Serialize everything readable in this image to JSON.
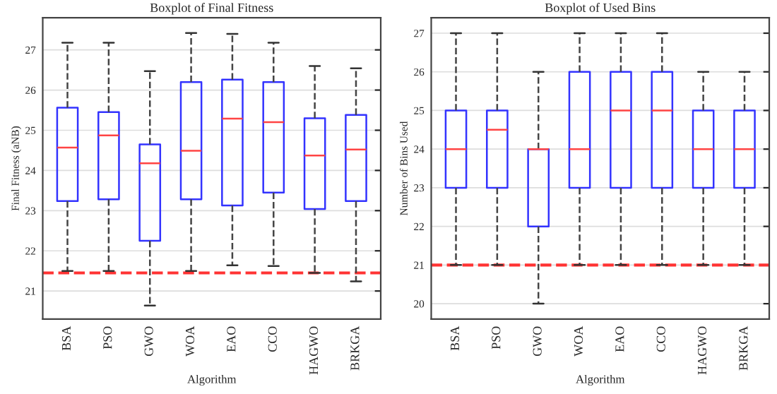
{
  "chart_data": [
    {
      "type": "box",
      "title": "Boxplot of Final Fitness",
      "xlabel": "Algorithm",
      "ylabel": "Final Fitness (aNB)",
      "categories": [
        "BSA",
        "PSO",
        "GWO",
        "WOA",
        "EAO",
        "CCO",
        "HAGWO",
        "BRKGA"
      ],
      "series": [
        {
          "color": "#3333ff",
          "boxes": [
            {
              "low": 21.5,
              "q1": 23.24,
              "median": 24.57,
              "q3": 25.56,
              "high": 27.18
            },
            {
              "low": 21.5,
              "q1": 23.28,
              "median": 24.87,
              "q3": 25.45,
              "high": 27.18
            },
            {
              "low": 20.64,
              "q1": 22.25,
              "median": 24.18,
              "q3": 24.65,
              "high": 26.47
            },
            {
              "low": 21.5,
              "q1": 23.28,
              "median": 24.49,
              "q3": 26.2,
              "high": 27.42
            },
            {
              "low": 21.64,
              "q1": 23.13,
              "median": 25.29,
              "q3": 26.26,
              "high": 27.4
            },
            {
              "low": 21.62,
              "q1": 23.45,
              "median": 25.2,
              "q3": 26.2,
              "high": 27.18
            },
            {
              "low": 21.45,
              "q1": 23.04,
              "median": 24.37,
              "q3": 25.3,
              "high": 26.6
            },
            {
              "low": 21.24,
              "q1": 23.24,
              "median": 24.52,
              "q3": 25.38,
              "high": 26.54
            }
          ]
        }
      ],
      "ylim": [
        20.3,
        27.8
      ],
      "yticks": [
        21,
        22,
        23,
        24,
        25,
        26,
        27
      ],
      "grid": "y",
      "ref_lines": [
        {
          "axis": "y",
          "value": 21.45,
          "color": "#ff3333",
          "line_style": "dashed"
        }
      ]
    },
    {
      "type": "box",
      "title": "Boxplot of Used Bins",
      "xlabel": "Algorithm",
      "ylabel": "Number of Bins Used",
      "categories": [
        "BSA",
        "PSO",
        "GWO",
        "WOA",
        "EAO",
        "CCO",
        "HAGWO",
        "BRKGA"
      ],
      "series": [
        {
          "color": "#3333ff",
          "boxes": [
            {
              "low": 21,
              "q1": 23,
              "median": 24,
              "q3": 25,
              "high": 27
            },
            {
              "low": 21,
              "q1": 23,
              "median": 24.5,
              "q3": 25,
              "high": 27
            },
            {
              "low": 20,
              "q1": 22,
              "median": 24,
              "q3": 24,
              "high": 26
            },
            {
              "low": 21,
              "q1": 23,
              "median": 24,
              "q3": 26,
              "high": 27
            },
            {
              "low": 21,
              "q1": 23,
              "median": 25,
              "q3": 26,
              "high": 27
            },
            {
              "low": 21,
              "q1": 23,
              "median": 25,
              "q3": 26,
              "high": 27
            },
            {
              "low": 21,
              "q1": 23,
              "median": 24,
              "q3": 25,
              "high": 26
            },
            {
              "low": 21,
              "q1": 23,
              "median": 24,
              "q3": 25,
              "high": 26
            }
          ]
        }
      ],
      "ylim": [
        19.6,
        27.4
      ],
      "yticks": [
        20,
        21,
        22,
        23,
        24,
        25,
        26,
        27
      ],
      "grid": "y",
      "ref_lines": [
        {
          "axis": "y",
          "value": 21,
          "color": "#ff3333",
          "line_style": "dashed"
        }
      ]
    }
  ]
}
